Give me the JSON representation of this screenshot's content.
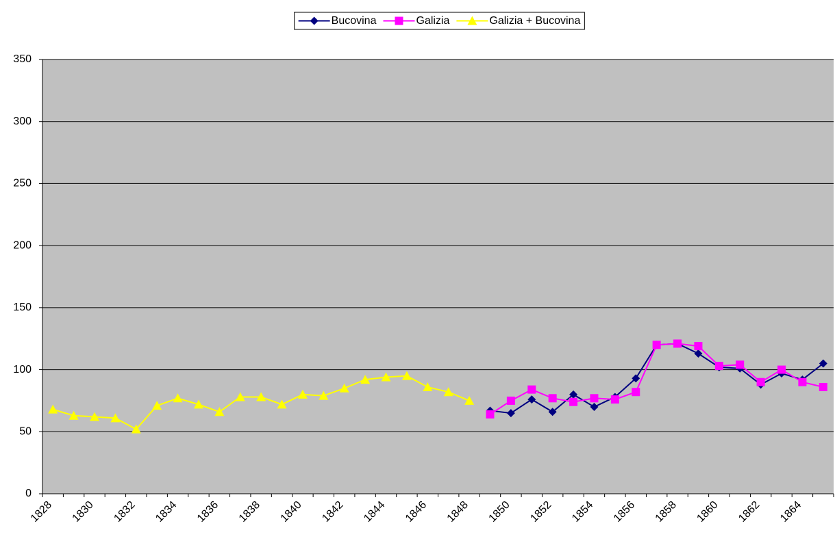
{
  "chart_data": {
    "type": "line",
    "categories": [
      "1828",
      null,
      "1830",
      null,
      "1832",
      null,
      "1834",
      null,
      "1836",
      null,
      "1838",
      null,
      "1840",
      null,
      "1842",
      null,
      "1844",
      null,
      "1846",
      null,
      "1848",
      null,
      "1850",
      null,
      "1852",
      null,
      "1854",
      null,
      "1856",
      null,
      "1858",
      null,
      "1860",
      null,
      "1862",
      null,
      "1864",
      null
    ],
    "series": [
      {
        "name": "Bucovina",
        "color": "#000080",
        "marker": "diamond",
        "values": [
          null,
          null,
          null,
          null,
          null,
          null,
          null,
          null,
          null,
          null,
          null,
          null,
          null,
          null,
          null,
          null,
          null,
          null,
          null,
          null,
          null,
          67,
          65,
          76,
          66,
          80,
          70,
          78,
          93,
          120,
          121,
          113,
          102,
          101,
          88,
          97,
          92,
          105
        ]
      },
      {
        "name": "Galizia",
        "color": "#ff00ff",
        "marker": "square",
        "values": [
          null,
          null,
          null,
          null,
          null,
          null,
          null,
          null,
          null,
          null,
          null,
          null,
          null,
          null,
          null,
          null,
          null,
          null,
          null,
          null,
          null,
          64,
          75,
          84,
          77,
          74,
          77,
          76,
          82,
          120,
          121,
          119,
          103,
          104,
          90,
          100,
          90,
          86
        ]
      },
      {
        "name": "Galizia + Bucovina",
        "color": "#ffff00",
        "marker": "triangle",
        "values": [
          68,
          63,
          62,
          61,
          52,
          71,
          77,
          72,
          66,
          78,
          78,
          72,
          80,
          79,
          85,
          92,
          94,
          95,
          86,
          82,
          75,
          null,
          null,
          null,
          null,
          null,
          null,
          null,
          null,
          null,
          null,
          null,
          null,
          null,
          null,
          null,
          null,
          null
        ]
      }
    ],
    "ylim": [
      0,
      350
    ],
    "yticks": [
      0,
      50,
      100,
      150,
      200,
      250,
      300,
      350
    ],
    "grid": true,
    "legend": "top"
  }
}
